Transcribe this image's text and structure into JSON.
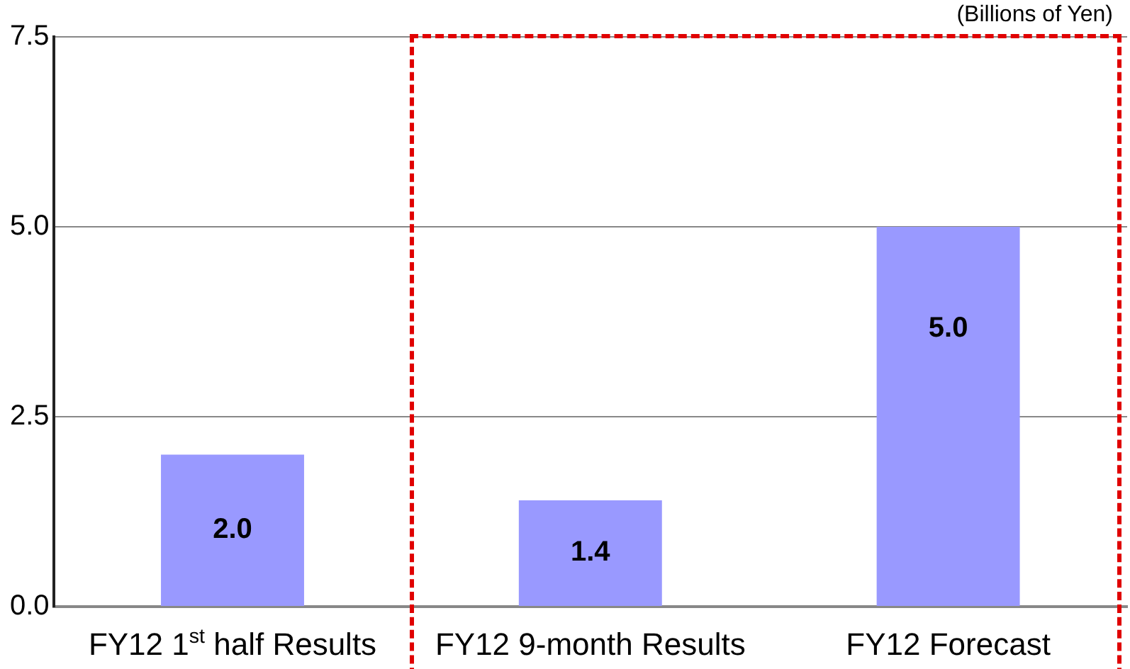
{
  "chart_data": {
    "type": "bar",
    "categories": [
      "FY12 1$^{st}$ half Results",
      "FY12 9-month Results",
      "FY12 Forecast"
    ],
    "values": [
      2.0,
      1.4,
      5.0
    ],
    "color": "#9999ff",
    "value_labels": [
      "2.0",
      "1.4",
      "5.0"
    ],
    "ylim": [
      0,
      7.5
    ],
    "yticks": [
      {
        "value": 0,
        "label": "0.0"
      },
      {
        "value": 2.5,
        "label": "2.5"
      },
      {
        "value": 5,
        "label": "5.0"
      },
      {
        "value": 7.5,
        "label": "7.5"
      }
    ],
    "grid": "y",
    "legend": false,
    "annotations": [
      "(Billions of Yen)"
    ]
  }
}
